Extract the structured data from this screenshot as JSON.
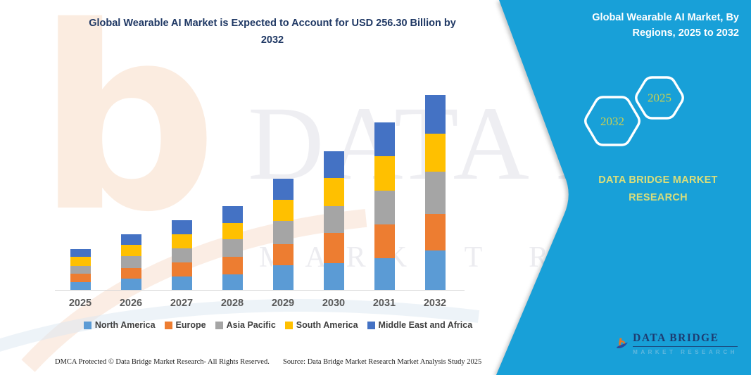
{
  "header": {
    "title_lines": [
      "Global Wearable AI Market is Expected to Account for USD 256.30 Billion by",
      "2032"
    ]
  },
  "side_panel": {
    "title_lines": [
      "Global Wearable AI Market, By",
      "Regions, 2025 to 2032"
    ],
    "hexagon_years": [
      "2032",
      "2025"
    ],
    "brand_lines": [
      "DATA BRIDGE MARKET",
      "RESEARCH"
    ],
    "colors": {
      "background": "#18a0d8",
      "hexagon_border": "#ffffff",
      "year_text": "#c9d051",
      "brand_text": "#d9de7b"
    }
  },
  "logo": {
    "name": "DATA BRIDGE",
    "subtitle": "MARKET RESEARCH",
    "icon": "data-bridge-b-swoosh-icon",
    "colors": {
      "b": "#e87722",
      "swoosh": "#2b4a9b",
      "name_text": "#1d3c71"
    }
  },
  "watermarks": {
    "letter": "b",
    "text_primary": "DATA BRIDGE",
    "text_secondary": "MARKET RESEARCH"
  },
  "chart_data": {
    "type": "bar",
    "stacked": true,
    "title": "Global Wearable AI Market is Expected to Account for USD 256.30 Billion by 2032",
    "unit": "USD Billion",
    "xlabel": "",
    "ylabel": "",
    "ylim": [
      0,
      260
    ],
    "grid": false,
    "legend_position": "bottom",
    "categories": [
      "2025",
      "2026",
      "2027",
      "2028",
      "2029",
      "2030",
      "2031",
      "2032"
    ],
    "series": [
      {
        "name": "North America",
        "color": "#5B9BD5",
        "values": [
          10.3,
          14.9,
          17.4,
          20.2,
          32.5,
          35.6,
          41.8,
          52.0
        ]
      },
      {
        "name": "Europe",
        "color": "#ED7D31",
        "values": [
          11.5,
          13.9,
          19.1,
          23.2,
          27.9,
          39.3,
          44.0,
          48.0
        ]
      },
      {
        "name": "Asia Pacific",
        "color": "#A5A5A5",
        "values": [
          10.2,
          15.8,
          17.8,
          23.5,
          30.1,
          35.6,
          44.2,
          55.7
        ]
      },
      {
        "name": "South America",
        "color": "#FFC000",
        "values": [
          11.2,
          14.6,
          18.7,
          20.6,
          28.1,
          36.6,
          45.5,
          49.5
        ]
      },
      {
        "name": "Middle East and Africa",
        "color": "#4472C4",
        "values": [
          11.0,
          13.9,
          18.9,
          22.6,
          27.6,
          35.6,
          44.3,
          51.1
        ]
      }
    ],
    "totals": [
      54.2,
      73.1,
      91.9,
      110.1,
      146.2,
      182.7,
      219.8,
      256.3
    ]
  },
  "footer": {
    "left": "DMCA Protected © Data Bridge Market Research-  All Rights Reserved.",
    "right": "Source: Data Bridge Market Research  Market Analysis Study 2025"
  }
}
